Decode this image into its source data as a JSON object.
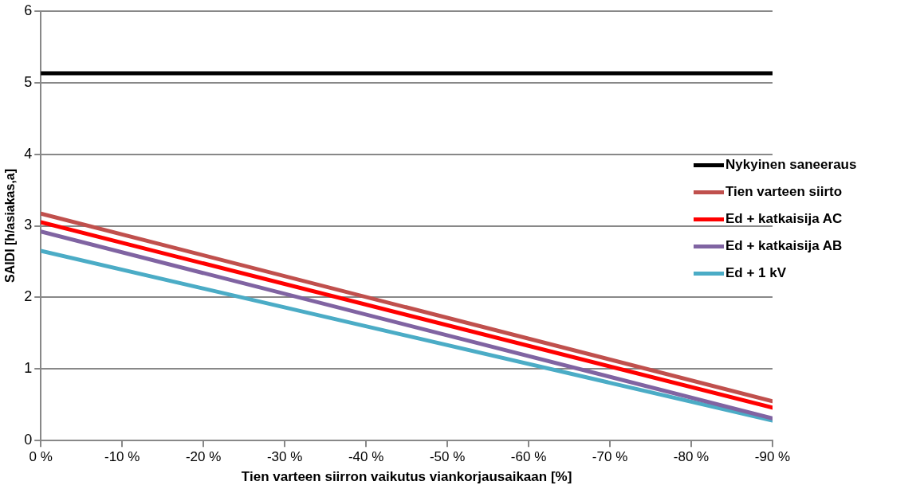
{
  "chart_data": {
    "type": "line",
    "xlabel": "Tien varteen siirron vaikutus viankorjausaikaan [%]",
    "ylabel": "SAIDI [h/asiakas,a]",
    "x": [
      0,
      -90
    ],
    "series": [
      {
        "name": "Nykyinen saneeraus",
        "color": "#000000",
        "values": [
          5.13,
          5.13
        ]
      },
      {
        "name": "Tien varteen siirto",
        "color": "#c0504d",
        "values": [
          3.17,
          0.55
        ]
      },
      {
        "name": "Ed + katkaisija AC",
        "color": "#ff0000",
        "values": [
          3.05,
          0.46
        ]
      },
      {
        "name": "Ed + katkaisija AB",
        "color": "#8064a2",
        "values": [
          2.92,
          0.31
        ]
      },
      {
        "name": "Ed + 1 kV",
        "color": "#4bacc6",
        "values": [
          2.65,
          0.28
        ]
      }
    ],
    "xlim": [
      0,
      -90
    ],
    "xticks": [
      {
        "value": 0,
        "label": "0 %"
      },
      {
        "value": -10,
        "label": "-10 %"
      },
      {
        "value": -20,
        "label": "-20 %"
      },
      {
        "value": -30,
        "label": "-30 %"
      },
      {
        "value": -40,
        "label": "-40 %"
      },
      {
        "value": -50,
        "label": "-50 %"
      },
      {
        "value": -60,
        "label": "-60 %"
      },
      {
        "value": -70,
        "label": "-70 %"
      },
      {
        "value": -80,
        "label": "-80 %"
      },
      {
        "value": -90,
        "label": "-90 %"
      }
    ],
    "ylim": [
      0,
      6
    ],
    "yticks": [
      0,
      1,
      2,
      3,
      4,
      5,
      6
    ],
    "grid": "y",
    "legend": "right",
    "marker": "none",
    "line_style": "solid"
  }
}
